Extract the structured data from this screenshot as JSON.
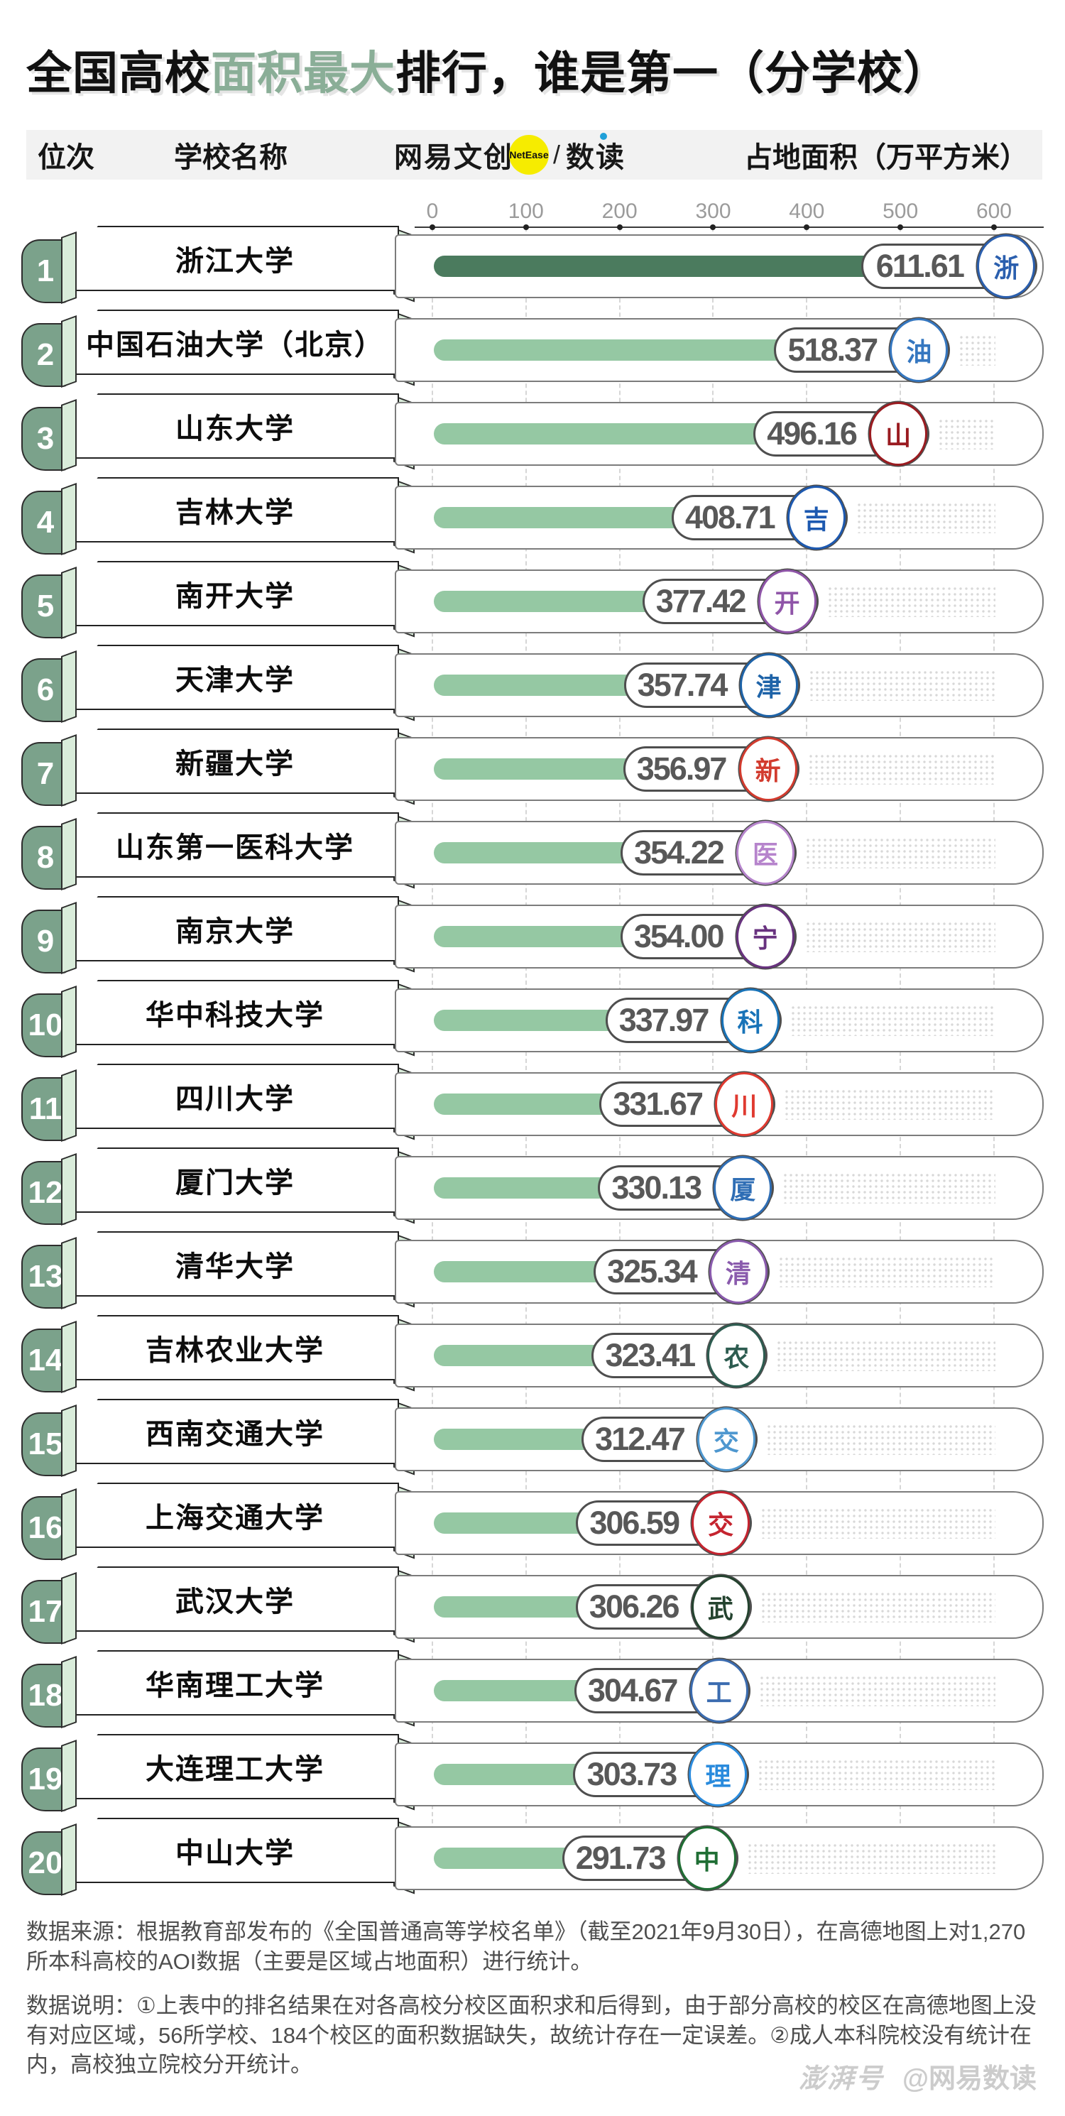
{
  "title": {
    "pre": "全国高校",
    "highlight": "面积最大",
    "post": "排行，谁是第一（分学校）"
  },
  "header": {
    "col_rank": "位次",
    "col_school": "学校名称",
    "col_area": "占地面积（万平方米）",
    "brand_left": "网易文创",
    "brand_badge": "NetEase",
    "brand_divider": "/",
    "brand_right": "数读"
  },
  "axis": {
    "ticks": [
      "0",
      "100",
      "200",
      "300",
      "400",
      "500",
      "600"
    ]
  },
  "colors": {
    "highlight_green": "#8aae97",
    "bar_green_light": "#95c8a3",
    "bar_green_dark": "#4b7b5e",
    "badge_green": "#7ba28b",
    "ribbon_light": "#d9ecda",
    "header_bg": "#f2f2f2",
    "value_text": "#585858",
    "brand_yellow": "#f6ec00"
  },
  "chart_data": {
    "type": "bar",
    "title": "全国高校面积最大排行，谁是第一（分学校）",
    "xlabel": "占地面积（万平方米）",
    "xlim": [
      0,
      650
    ],
    "grid": "vertical-dashed",
    "legend": "none",
    "categories": [
      "浙江大学",
      "中国石油大学（北京）",
      "山东大学",
      "吉林大学",
      "南开大学",
      "天津大学",
      "新疆大学",
      "山东第一医科大学",
      "南京大学",
      "华中科技大学",
      "四川大学",
      "厦门大学",
      "清华大学",
      "吉林农业大学",
      "西南交通大学",
      "上海交通大学",
      "武汉大学",
      "华南理工大学",
      "大连理工大学",
      "中山大学"
    ],
    "ranks": [
      1,
      2,
      3,
      4,
      5,
      6,
      7,
      8,
      9,
      10,
      11,
      12,
      13,
      14,
      15,
      16,
      17,
      18,
      19,
      20
    ],
    "values": [
      611.61,
      518.37,
      496.16,
      408.71,
      377.42,
      357.74,
      356.97,
      354.22,
      354.0,
      337.97,
      331.67,
      330.13,
      325.34,
      323.41,
      312.47,
      306.59,
      306.26,
      304.67,
      303.73,
      291.73
    ],
    "value_labels": [
      "611.61",
      "518.37",
      "496.16",
      "408.71",
      "377.42",
      "357.74",
      "356.97",
      "354.22",
      "354.00",
      "337.97",
      "331.67",
      "330.13",
      "325.34",
      "323.41",
      "312.47",
      "306.59",
      "306.26",
      "304.67",
      "303.73",
      "291.73"
    ],
    "logos": [
      {
        "text": "浙",
        "color": "#2b5fae"
      },
      {
        "text": "油",
        "color": "#3577c0"
      },
      {
        "text": "山",
        "color": "#9a1b20"
      },
      {
        "text": "吉",
        "color": "#1d59b0"
      },
      {
        "text": "开",
        "color": "#8f55a8"
      },
      {
        "text": "津",
        "color": "#1e63a8"
      },
      {
        "text": "新",
        "color": "#d23b2e"
      },
      {
        "text": "医",
        "color": "#b684cc"
      },
      {
        "text": "宁",
        "color": "#68327f"
      },
      {
        "text": "科",
        "color": "#1873b8"
      },
      {
        "text": "川",
        "color": "#e03a30"
      },
      {
        "text": "厦",
        "color": "#2f6eb5"
      },
      {
        "text": "清",
        "color": "#8a5bad"
      },
      {
        "text": "农",
        "color": "#2d5c50"
      },
      {
        "text": "交",
        "color": "#4e97cf"
      },
      {
        "text": "交",
        "color": "#c5242f"
      },
      {
        "text": "武",
        "color": "#24432f"
      },
      {
        "text": "工",
        "color": "#3b6cb0"
      },
      {
        "text": "理",
        "color": "#2a8bdd"
      },
      {
        "text": "中",
        "color": "#1f6e34"
      }
    ]
  },
  "footer": {
    "source": "数据来源：根据教育部发布的《全国普通高等学校名单》（截至2021年9月30日），在高德地图上对1,270所本科高校的AOI数据（主要是区域占地面积）进行统计。",
    "notes": "数据说明：①上表中的排名结果在对各高校分校区面积求和后得到，由于部分高校的校区在高德地图上没有对应区域，56所学校、184个校区的面积数据缺失，故统计存在一定误差。②成人本科院校没有统计在内，高校独立院校分开统计。"
  },
  "watermark": {
    "brand": "澎湃号",
    "handle": "@网易数读"
  }
}
